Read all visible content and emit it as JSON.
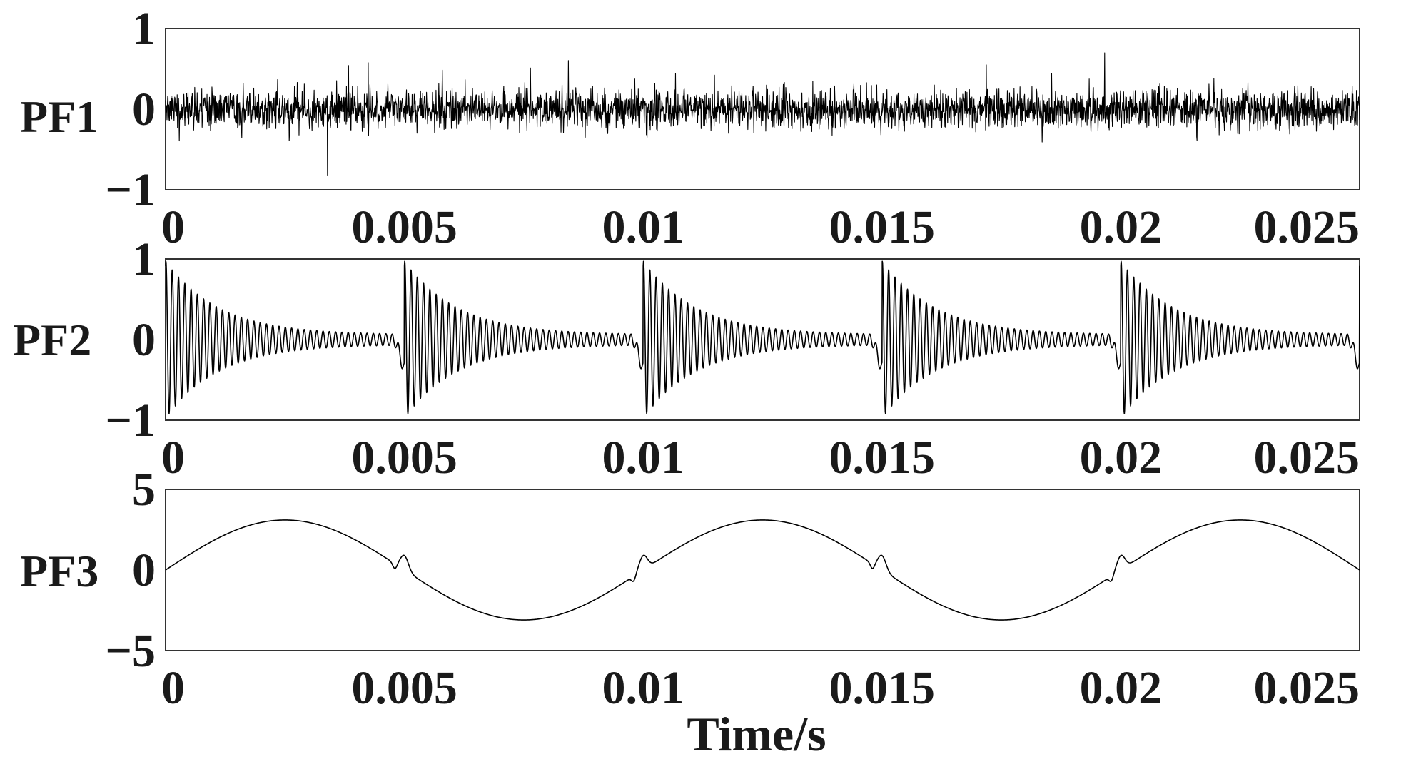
{
  "chart_data": [
    {
      "type": "line",
      "ylabel": "PF1",
      "xlim": [
        0,
        0.025
      ],
      "ylim": [
        -1,
        1
      ],
      "xticks": [
        "0",
        "0.005",
        "0.01",
        "0.015",
        "0.02",
        "0.025"
      ],
      "yticks": [
        "1",
        "0",
        "−1"
      ],
      "series": [
        {
          "signal": "broadband noise",
          "std": 0.22,
          "peak": 0.85,
          "x": [
            0,
            0.0025,
            0.005,
            0.0075,
            0.01,
            0.0125,
            0.015,
            0.0175,
            0.02,
            0.0225,
            0.025
          ],
          "y": [
            0.05,
            -0.18,
            0.38,
            0.21,
            -0.42,
            0.15,
            0.33,
            -0.27,
            0.46,
            -0.12,
            0.08
          ]
        }
      ]
    },
    {
      "type": "line",
      "ylabel": "PF2",
      "xlim": [
        0,
        0.025
      ],
      "ylim": [
        -1,
        1
      ],
      "xticks": [
        "0",
        "0.005",
        "0.01",
        "0.015",
        "0.02",
        "0.025"
      ],
      "yticks": [
        "1",
        "0",
        "−1"
      ],
      "series": [
        {
          "signal": "periodic decaying oscillation bursts",
          "burst_onsets": [
            0,
            0.005,
            0.01,
            0.015,
            0.02
          ],
          "peak_amplitude": 1.0,
          "period": 0.005
        }
      ]
    },
    {
      "type": "line",
      "ylabel": "PF3",
      "xlabel": "Time/s",
      "xlim": [
        0,
        0.025
      ],
      "ylim": [
        -5,
        5
      ],
      "xticks": [
        "0",
        "0.005",
        "0.01",
        "0.015",
        "0.02",
        "0.025"
      ],
      "yticks": [
        "5",
        "0",
        "−5"
      ],
      "series": [
        {
          "signal": "sinusoid with transient bumps",
          "amplitude": 3.1,
          "period": 0.01,
          "x": [
            0,
            0.0025,
            0.005,
            0.0075,
            0.01,
            0.0125,
            0.015,
            0.0175,
            0.02,
            0.0225,
            0.025
          ],
          "y": [
            0,
            3.1,
            0,
            -3.1,
            0,
            3.1,
            0,
            -3.1,
            0,
            3.1,
            0
          ],
          "bump_times": [
            0.005,
            0.01,
            0.015,
            0.02
          ]
        }
      ]
    }
  ]
}
